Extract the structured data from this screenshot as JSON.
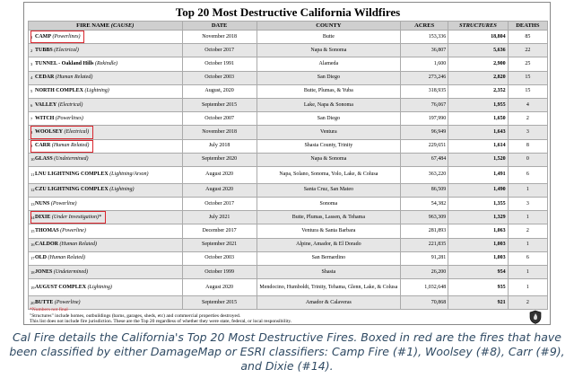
{
  "title": "Top 20 Most Destructive California Wildfires",
  "columns": {
    "fire_name": "FIRE NAME",
    "fire_cause": "(CAUSE)",
    "date": "DATE",
    "county": "COUNTY",
    "acres": "ACRES",
    "structures": "STRUCTURES",
    "deaths": "DEATHS"
  },
  "rows": [
    {
      "rank": "1",
      "name": "CAMP",
      "cause": "(Powerlines)",
      "date": "November 2018",
      "county": "Butte",
      "acres": "153,336",
      "structures": "18,804",
      "deaths": "85"
    },
    {
      "rank": "2",
      "name": "TUBBS",
      "cause": "(Electrical)",
      "date": "October 2017",
      "county": "Napa & Sonoma",
      "acres": "36,807",
      "structures": "5,636",
      "deaths": "22"
    },
    {
      "rank": "3",
      "name": "TUNNEL - Oakland Hills",
      "cause": "(Rekindle)",
      "date": "October 1991",
      "county": "Alameda",
      "acres": "1,600",
      "structures": "2,900",
      "deaths": "25"
    },
    {
      "rank": "4",
      "name": "CEDAR",
      "cause": "(Human Related)",
      "date": "October 2003",
      "county": "San Diego",
      "acres": "273,246",
      "structures": "2,820",
      "deaths": "15"
    },
    {
      "rank": "5",
      "name": "NORTH COMPLEX",
      "cause": "(Lightning)",
      "date": "August, 2020",
      "county": "Butte, Plumas, & Yuba",
      "acres": "318,935",
      "structures": "2,352",
      "deaths": "15"
    },
    {
      "rank": "6",
      "name": "VALLEY",
      "cause": "(Electrical)",
      "date": "September 2015",
      "county": "Lake, Napa & Sonoma",
      "acres": "76,067",
      "structures": "1,955",
      "deaths": "4"
    },
    {
      "rank": "7",
      "name": "WITCH",
      "cause": "(Powerlines)",
      "date": "October 2007",
      "county": "San Diego",
      "acres": "197,990",
      "structures": "1,650",
      "deaths": "2"
    },
    {
      "rank": "8",
      "name": "WOOLSEY",
      "cause": "(Electrical)",
      "date": "November 2018",
      "county": "Ventura",
      "acres": "96,949",
      "structures": "1,643",
      "deaths": "3"
    },
    {
      "rank": "9",
      "name": "CARR",
      "cause": "(Human Related)",
      "date": "July 2018",
      "county": "Shasta County, Trinity",
      "acres": "229,651",
      "structures": "1,614",
      "deaths": "8"
    },
    {
      "rank": "10",
      "name": "GLASS",
      "cause": "(Undetermined)",
      "date": "September 2020",
      "county": "Napa & Sonoma",
      "acres": "67,484",
      "structures": "1,520",
      "deaths": "0"
    },
    {
      "rank": "11",
      "name": "LNU LIGHTNING COMPLEX",
      "cause": "(Lightning/Arson)",
      "date": "August 2020",
      "county": "Napa, Solano, Sonoma, Yolo, Lake, & Colusa",
      "acres": "363,220",
      "structures": "1,491",
      "deaths": "6"
    },
    {
      "rank": "12",
      "name": "CZU LIGHTNING COMPLEX",
      "cause": "(Lightning)",
      "date": "August 2020",
      "county": "Santa Cruz, San Mateo",
      "acres": "86,509",
      "structures": "1,490",
      "deaths": "1"
    },
    {
      "rank": "13",
      "name": "NUNS",
      "cause": "(Powerline)",
      "date": "October 2017",
      "county": "Sonoma",
      "acres": "54,382",
      "structures": "1,355",
      "deaths": "3"
    },
    {
      "rank": "14",
      "name": "DIXIE",
      "cause": "(Under Investigation)*",
      "date": "July 2021",
      "county": "Butte, Plumas, Lassen, & Tehama",
      "acres": "963,309",
      "structures": "1,329",
      "deaths": "1"
    },
    {
      "rank": "15",
      "name": "THOMAS",
      "cause": "(Powerline)",
      "date": "December 2017",
      "county": "Ventura & Santa Barbara",
      "acres": "281,893",
      "structures": "1,063",
      "deaths": "2"
    },
    {
      "rank": "16",
      "name": "CALDOR",
      "cause": "(Human Related)",
      "date": "September 2021",
      "county": "Alpine, Amador, & El Dorado",
      "acres": "221,835",
      "structures": "1,003",
      "deaths": "1"
    },
    {
      "rank": "17",
      "name": "OLD",
      "cause": "(Human Related)",
      "date": "October 2003",
      "county": "San Bernardino",
      "acres": "91,281",
      "structures": "1,003",
      "deaths": "6"
    },
    {
      "rank": "18",
      "name": "JONES",
      "cause": "(Undetermined)",
      "date": "October 1999",
      "county": "Shasta",
      "acres": "26,200",
      "structures": "954",
      "deaths": "1"
    },
    {
      "rank": "19",
      "name": "AUGUST COMPLEX",
      "cause": "(Lightning)",
      "date": "August 2020",
      "county": "Mendocino, Humboldt, Trinity, Tehama, Glenn, Lake, & Colusa",
      "acres": "1,032,648",
      "structures": "935",
      "deaths": "1"
    },
    {
      "rank": "20",
      "name": "BUTTE",
      "cause": "(Powerline)",
      "date": "September 2015",
      "county": "Amador & Calaveras",
      "acres": "70,868",
      "structures": "921",
      "deaths": "2"
    }
  ],
  "highlighted_ranks": [
    "1",
    "8",
    "9",
    "14"
  ],
  "highlight_color": "#d8262e",
  "footnote_numbers": "*Numbers not final",
  "footnote_structures": "\"Structures\" include homes, outbuildings (barns, garages, sheds, etc) and commercial properties destroyed.",
  "footnote_jurisdiction": "This list does not include fire jurisdiction.  These are the Top 20 regardless of whether they were state, federal, or local responsibility.",
  "seal_icon": "cal-fire-seal",
  "caption": "Cal Fire details the California's Top 20 Most Destructive Fires.  Boxed in red are the fires that have been classified by either DamageMap or ESRI classifiers: Camp Fire (#1), Woolsey (#8), Carr (#9), and Dixie (#14).",
  "caption_color": "#2f4a63"
}
